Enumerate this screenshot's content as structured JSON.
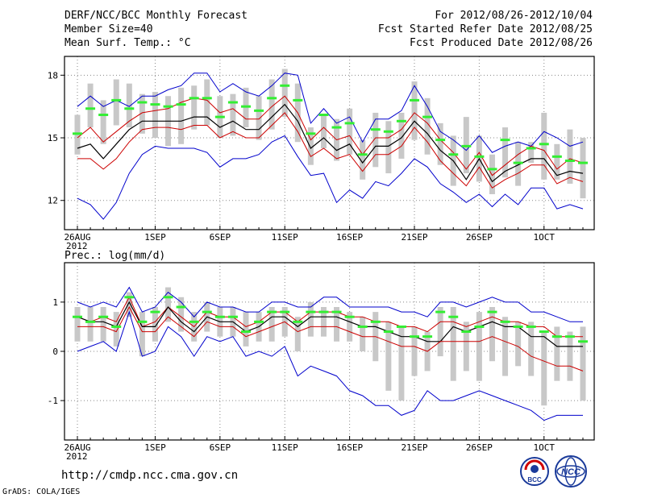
{
  "header": {
    "title": "DERF/NCC/BCC Monthly Forecast",
    "member_size": "Member Size=40",
    "variable": "Mean Surf. Temp.: °C",
    "forecast_range": "For 2012/08/26-2012/10/04",
    "started_refer": "Fcst Started Refer Date 2012/08/25",
    "produced": "Fcst Produced Date 2012/08/26"
  },
  "footer": {
    "url": "http://cmdp.ncc.cma.gov.cn",
    "grads": "GrADS: COLA/IGES",
    "logo_bcc": "BCC",
    "logo_ncc": "NCC"
  },
  "colors": {
    "max_min": "#0000cc",
    "spread": "#cc0000",
    "mean": "#000000",
    "obs": "#33ee33",
    "box": "#c8c8c8",
    "grid": "#888888"
  },
  "chart_data": [
    {
      "type": "line",
      "title": "Mean Surf. Temp.: °C",
      "x_tick_labels": [
        "26AUG",
        "1SEP",
        "6SEP",
        "11SEP",
        "16SEP",
        "21SEP",
        "26SEP",
        "1OCT"
      ],
      "x_tick_days": [
        0,
        6,
        11,
        16,
        21,
        26,
        31,
        36
      ],
      "year_label": "2012",
      "ylim": [
        10.6,
        18.9
      ],
      "yticks": [
        12,
        15,
        18
      ],
      "days": 40,
      "series": [
        {
          "name": "max",
          "values": [
            16.5,
            17.0,
            16.5,
            16.8,
            16.5,
            17.0,
            17.0,
            17.3,
            17.5,
            18.1,
            18.1,
            17.2,
            17.6,
            17.2,
            17.0,
            17.5,
            18.1,
            18.0,
            15.7,
            16.4,
            15.7,
            16.0,
            14.8,
            15.9,
            15.9,
            16.3,
            17.5,
            16.5,
            15.3,
            14.9,
            14.4,
            15.1,
            14.3,
            14.6,
            14.8,
            14.6,
            15.3,
            15.0,
            14.6,
            14.8
          ]
        },
        {
          "name": "upper",
          "values": [
            15.0,
            15.5,
            14.8,
            15.3,
            15.8,
            16.2,
            16.3,
            16.4,
            16.7,
            16.9,
            16.8,
            16.2,
            16.4,
            15.9,
            15.9,
            16.5,
            17.0,
            16.2,
            14.9,
            15.5,
            14.9,
            15.1,
            14.2,
            15.0,
            15.0,
            15.4,
            16.2,
            15.7,
            14.9,
            14.3,
            13.5,
            14.3,
            13.2,
            13.7,
            14.2,
            14.6,
            14.4,
            13.5,
            14.0,
            13.8
          ]
        },
        {
          "name": "mean",
          "values": [
            14.5,
            14.7,
            14.0,
            14.7,
            15.4,
            15.8,
            15.8,
            15.8,
            15.8,
            16.0,
            16.0,
            15.5,
            15.8,
            15.4,
            15.4,
            16.0,
            16.6,
            15.8,
            14.5,
            15.0,
            14.4,
            14.7,
            13.8,
            14.6,
            14.6,
            15.0,
            15.8,
            15.2,
            14.4,
            13.9,
            13.0,
            14.0,
            12.9,
            13.4,
            13.7,
            14.0,
            14.0,
            13.2,
            13.4,
            13.3
          ]
        },
        {
          "name": "lower",
          "values": [
            14.0,
            14.0,
            13.5,
            14.0,
            14.8,
            15.4,
            15.5,
            15.5,
            15.4,
            15.6,
            15.6,
            15.0,
            15.3,
            15.0,
            15.0,
            15.6,
            16.2,
            15.3,
            14.1,
            14.5,
            14.0,
            14.2,
            13.4,
            14.2,
            14.2,
            14.6,
            15.5,
            14.8,
            13.9,
            13.3,
            12.7,
            13.6,
            12.6,
            13.0,
            13.3,
            13.7,
            13.7,
            12.8,
            13.1,
            12.9
          ]
        },
        {
          "name": "min",
          "values": [
            12.1,
            11.8,
            11.1,
            11.9,
            13.3,
            14.2,
            14.6,
            14.5,
            14.5,
            14.5,
            14.3,
            13.6,
            14.0,
            14.0,
            14.2,
            14.8,
            15.1,
            14.1,
            13.2,
            13.3,
            11.9,
            12.5,
            12.1,
            12.9,
            12.7,
            13.3,
            14.0,
            13.6,
            12.8,
            12.4,
            11.9,
            12.3,
            11.7,
            12.3,
            11.8,
            12.6,
            12.6,
            11.6,
            11.8,
            11.6
          ]
        },
        {
          "name": "observed",
          "values": [
            15.2,
            16.4,
            16.1,
            16.8,
            16.4,
            16.7,
            16.6,
            16.5,
            16.6,
            16.9,
            16.9,
            16.0,
            16.7,
            16.5,
            16.3,
            16.9,
            17.5,
            16.8,
            15.2,
            16.1,
            15.5,
            15.7,
            14.2,
            15.4,
            15.3,
            15.8,
            16.8,
            16.0,
            14.9,
            14.2,
            14.6,
            14.1,
            13.5,
            14.9,
            13.8,
            14.5,
            14.7,
            14.1,
            13.9,
            13.8
          ]
        }
      ],
      "box_ranges": [
        [
          14.2,
          16.1
        ],
        [
          15.5,
          17.6
        ],
        [
          14.7,
          16.8
        ],
        [
          15.6,
          17.8
        ],
        [
          15.5,
          17.6
        ],
        [
          15.2,
          17.1
        ],
        [
          15.0,
          17.2
        ],
        [
          14.6,
          17.0
        ],
        [
          14.7,
          17.4
        ],
        [
          15.4,
          17.5
        ],
        [
          15.6,
          17.8
        ],
        [
          15.0,
          17.0
        ],
        [
          15.1,
          17.1
        ],
        [
          15.5,
          17.4
        ],
        [
          14.9,
          17.0
        ],
        [
          15.4,
          17.8
        ],
        [
          16.0,
          18.3
        ],
        [
          14.8,
          17.6
        ],
        [
          13.7,
          15.5
        ],
        [
          14.5,
          16.1
        ],
        [
          13.9,
          15.9
        ],
        [
          14.2,
          16.4
        ],
        [
          13.0,
          14.9
        ],
        [
          13.6,
          16.2
        ],
        [
          13.3,
          15.8
        ],
        [
          14.0,
          16.2
        ],
        [
          14.9,
          17.7
        ],
        [
          14.2,
          16.9
        ],
        [
          13.7,
          15.7
        ],
        [
          12.7,
          15.1
        ],
        [
          13.3,
          16.0
        ],
        [
          12.9,
          15.1
        ],
        [
          12.3,
          14.2
        ],
        [
          13.1,
          15.5
        ],
        [
          12.7,
          14.8
        ],
        [
          13.8,
          14.8
        ],
        [
          13.0,
          16.2
        ],
        [
          13.0,
          14.7
        ],
        [
          12.8,
          15.4
        ],
        [
          12.1,
          15.0
        ]
      ]
    },
    {
      "type": "line",
      "title": "Prec.: log(mm/d)",
      "x_tick_labels": [
        "26AUG",
        "1SEP",
        "6SEP",
        "11SEP",
        "16SEP",
        "21SEP",
        "26SEP",
        "1OCT"
      ],
      "x_tick_days": [
        0,
        6,
        11,
        16,
        21,
        26,
        31,
        36
      ],
      "year_label": "2012",
      "ylim": [
        -1.8,
        1.8
      ],
      "yticks": [
        -1,
        0,
        1
      ],
      "days": 40,
      "series": [
        {
          "name": "max",
          "values": [
            1.0,
            0.9,
            1.0,
            0.9,
            1.3,
            0.8,
            0.9,
            1.2,
            1.0,
            0.7,
            1.0,
            0.9,
            0.9,
            0.8,
            0.8,
            1.0,
            1.0,
            0.9,
            0.9,
            1.1,
            1.1,
            0.9,
            0.9,
            0.9,
            0.9,
            0.8,
            0.8,
            0.7,
            1.0,
            1.0,
            0.9,
            1.0,
            1.1,
            1.0,
            1.0,
            0.8,
            0.8,
            0.7,
            0.6,
            0.6
          ]
        },
        {
          "name": "upper",
          "values": [
            0.7,
            0.6,
            0.7,
            0.6,
            1.1,
            0.5,
            0.6,
            0.9,
            0.7,
            0.5,
            0.8,
            0.7,
            0.7,
            0.5,
            0.6,
            0.8,
            0.8,
            0.6,
            0.8,
            0.8,
            0.8,
            0.7,
            0.7,
            0.6,
            0.6,
            0.5,
            0.5,
            0.4,
            0.6,
            0.6,
            0.5,
            0.6,
            0.7,
            0.6,
            0.6,
            0.5,
            0.5,
            0.3,
            0.3,
            0.3
          ]
        },
        {
          "name": "mean",
          "values": [
            0.7,
            0.6,
            0.6,
            0.5,
            1.0,
            0.5,
            0.5,
            0.9,
            0.6,
            0.4,
            0.7,
            0.6,
            0.6,
            0.4,
            0.5,
            0.7,
            0.7,
            0.5,
            0.7,
            0.7,
            0.7,
            0.6,
            0.5,
            0.5,
            0.4,
            0.3,
            0.3,
            0.2,
            0.2,
            0.5,
            0.4,
            0.5,
            0.6,
            0.5,
            0.5,
            0.3,
            0.3,
            0.1,
            0.1,
            0.1
          ]
        },
        {
          "name": "lower",
          "values": [
            0.5,
            0.5,
            0.5,
            0.4,
            0.9,
            0.4,
            0.4,
            0.7,
            0.5,
            0.3,
            0.6,
            0.5,
            0.5,
            0.3,
            0.4,
            0.5,
            0.6,
            0.4,
            0.5,
            0.5,
            0.5,
            0.4,
            0.3,
            0.3,
            0.2,
            0.1,
            0.1,
            0.0,
            0.2,
            0.2,
            0.2,
            0.2,
            0.3,
            0.2,
            0.1,
            -0.1,
            -0.2,
            -0.3,
            -0.3,
            -0.4
          ]
        },
        {
          "name": "min",
          "values": [
            0.0,
            0.1,
            0.2,
            0.0,
            0.8,
            -0.1,
            0.0,
            0.5,
            0.3,
            -0.1,
            0.3,
            0.2,
            0.3,
            -0.1,
            0.0,
            -0.1,
            0.1,
            -0.5,
            -0.3,
            -0.4,
            -0.5,
            -0.8,
            -0.9,
            -1.1,
            -1.1,
            -1.3,
            -1.2,
            -0.8,
            -1.0,
            -1.0,
            -0.9,
            -0.8,
            -0.9,
            -1.0,
            -1.1,
            -1.2,
            -1.4,
            -1.3,
            -1.3,
            -1.3
          ]
        },
        {
          "name": "observed",
          "values": [
            0.7,
            0.6,
            0.7,
            0.5,
            1.1,
            0.6,
            0.8,
            1.1,
            0.9,
            0.6,
            0.8,
            0.7,
            0.7,
            0.4,
            0.6,
            0.8,
            0.8,
            0.6,
            0.8,
            0.8,
            0.8,
            0.7,
            0.5,
            0.6,
            0.4,
            0.5,
            0.3,
            0.3,
            0.8,
            0.7,
            0.4,
            0.5,
            0.8,
            0.6,
            0.5,
            0.5,
            0.4,
            0.3,
            0.3,
            0.2
          ]
        }
      ],
      "box_ranges": [
        [
          0.2,
          0.9
        ],
        [
          0.2,
          0.9
        ],
        [
          0.2,
          0.9
        ],
        [
          0.1,
          0.8
        ],
        [
          0.7,
          1.2
        ],
        [
          -0.1,
          0.8
        ],
        [
          0.2,
          0.9
        ],
        [
          0.6,
          1.3
        ],
        [
          0.4,
          1.1
        ],
        [
          0.2,
          0.8
        ],
        [
          0.4,
          1.0
        ],
        [
          0.3,
          0.9
        ],
        [
          0.3,
          0.9
        ],
        [
          0.1,
          0.8
        ],
        [
          0.2,
          0.8
        ],
        [
          0.2,
          0.9
        ],
        [
          0.3,
          0.9
        ],
        [
          0.0,
          0.7
        ],
        [
          0.3,
          1.0
        ],
        [
          0.3,
          0.9
        ],
        [
          0.2,
          0.9
        ],
        [
          0.2,
          0.8
        ],
        [
          0.0,
          0.7
        ],
        [
          -0.2,
          0.8
        ],
        [
          -0.8,
          0.6
        ],
        [
          -1.0,
          0.5
        ],
        [
          -0.5,
          0.5
        ],
        [
          -0.4,
          0.4
        ],
        [
          -0.1,
          0.9
        ],
        [
          -0.6,
          0.9
        ],
        [
          -0.4,
          0.6
        ],
        [
          -0.6,
          0.8
        ],
        [
          -0.2,
          0.9
        ],
        [
          -0.5,
          0.7
        ],
        [
          -0.3,
          0.6
        ],
        [
          -0.5,
          0.6
        ],
        [
          -1.1,
          0.4
        ],
        [
          -0.6,
          0.5
        ],
        [
          -0.6,
          0.4
        ],
        [
          -1.0,
          0.5
        ]
      ]
    }
  ]
}
